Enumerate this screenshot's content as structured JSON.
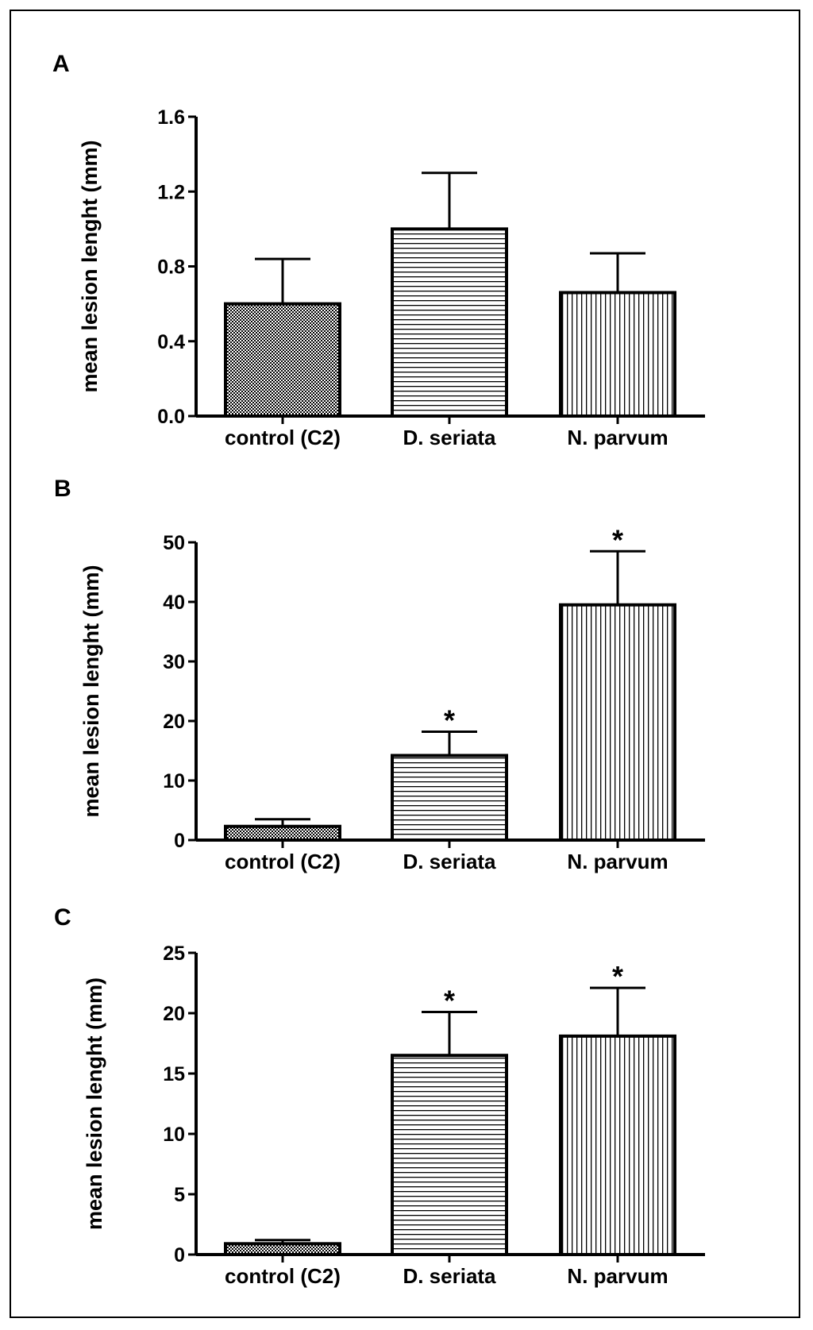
{
  "chart_data": [
    {
      "panel_label": "A",
      "type": "bar",
      "categories": [
        "control (C2)",
        "D. seriata",
        "N. parvum"
      ],
      "values": [
        0.6,
        1.0,
        0.66
      ],
      "errors": [
        0.24,
        0.3,
        0.21
      ],
      "significance": [
        "",
        "",
        ""
      ],
      "ylabel": "mean lesion lenght (mm)",
      "ylim": [
        0,
        1.6
      ],
      "yticks": [
        0.0,
        0.4,
        0.8,
        1.2,
        1.6
      ],
      "ytick_labels": [
        "0.0",
        "0.4",
        "0.8",
        "1.2",
        "1.6"
      ],
      "patterns": [
        "checker",
        "horizontal",
        "vertical"
      ]
    },
    {
      "panel_label": "B",
      "type": "bar",
      "categories": [
        "control (C2)",
        "D. seriata",
        "N. parvum"
      ],
      "values": [
        2.3,
        14.2,
        39.5
      ],
      "errors": [
        1.2,
        4.0,
        9.0
      ],
      "significance": [
        "",
        "*",
        "*"
      ],
      "ylabel": "mean lesion lenght (mm)",
      "ylim": [
        0,
        50
      ],
      "yticks": [
        0,
        10,
        20,
        30,
        40,
        50
      ],
      "ytick_labels": [
        "0",
        "10",
        "20",
        "30",
        "40",
        "50"
      ],
      "patterns": [
        "checker",
        "horizontal",
        "vertical"
      ]
    },
    {
      "panel_label": "C",
      "type": "bar",
      "categories": [
        "control (C2)",
        "D. seriata",
        "N. parvum"
      ],
      "values": [
        0.9,
        16.5,
        18.1
      ],
      "errors": [
        0.3,
        3.6,
        4.0
      ],
      "significance": [
        "",
        "*",
        "*"
      ],
      "ylabel": "mean lesion lenght (mm)",
      "ylim": [
        0,
        25
      ],
      "yticks": [
        0,
        5,
        10,
        15,
        20,
        25
      ],
      "ytick_labels": [
        "0",
        "5",
        "10",
        "15",
        "20",
        "25"
      ],
      "patterns": [
        "checker",
        "horizontal",
        "vertical"
      ]
    }
  ]
}
